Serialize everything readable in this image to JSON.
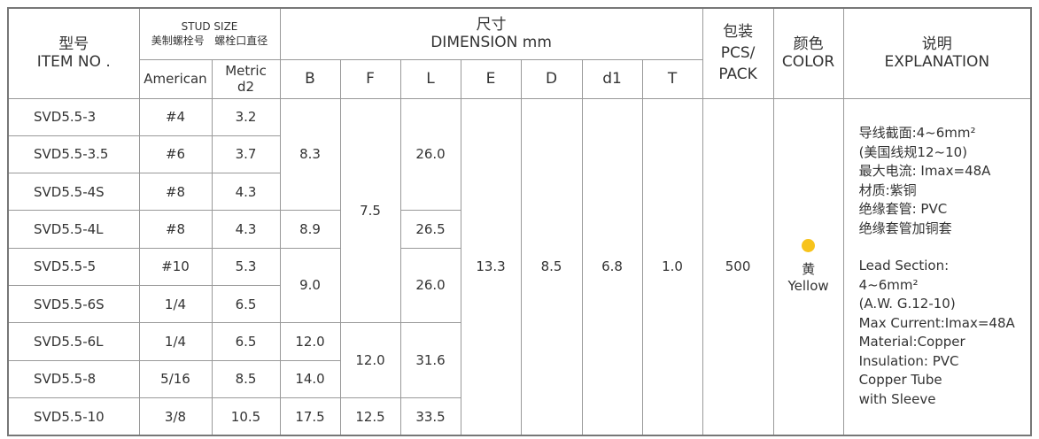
{
  "header": {
    "model_zh": "型号",
    "model_en": "ITEM NO .",
    "stud_size": "STUD SIZE",
    "stud_american_zh": "美制螺栓号",
    "stud_metric_zh": "螺栓口直径",
    "dim_zh": "尺寸",
    "dim_en": "DIMENSION mm",
    "american": "American",
    "metric": "Metric",
    "metric_d2": "d2",
    "B": "B",
    "F": "F",
    "L": "L",
    "E": "E",
    "D": "D",
    "d1": "d1",
    "T": "T",
    "pack_zh": "包装",
    "pack_en1": "PCS/",
    "pack_en2": "PACK",
    "color_zh": "颜色",
    "color_en": "COLOR",
    "expl_zh": "说明",
    "expl_en": "EXPLANATION"
  },
  "rows": [
    {
      "model": "SVD5.5-3",
      "american": "#4",
      "metric": "3.2"
    },
    {
      "model": "SVD5.5-3.5",
      "american": "#6",
      "metric": "3.7"
    },
    {
      "model": "SVD5.5-4S",
      "american": "#8",
      "metric": "4.3"
    },
    {
      "model": "SVD5.5-4L",
      "american": "#8",
      "metric": "4.3"
    },
    {
      "model": "SVD5.5-5",
      "american": "#10",
      "metric": "5.3"
    },
    {
      "model": "SVD5.5-6S",
      "american": "1/4",
      "metric": "6.5"
    },
    {
      "model": "SVD5.5-6L",
      "american": "1/4",
      "metric": "6.5"
    },
    {
      "model": "SVD5.5-8",
      "american": "5/16",
      "metric": "8.5"
    },
    {
      "model": "SVD5.5-10",
      "american": "3/8",
      "metric": "10.5"
    }
  ],
  "B": [
    "8.3",
    "8.9",
    "9.0",
    "12.0",
    "14.0",
    "17.5"
  ],
  "F": [
    "7.5",
    "12.0",
    "12.5"
  ],
  "L": [
    "26.0",
    "26.5",
    "26.0",
    "31.6",
    "33.5"
  ],
  "E": "13.3",
  "D": "8.5",
  "d1": "6.8",
  "T": "1.0",
  "pack": "500",
  "color": {
    "zh": "黄",
    "en": "Yellow"
  },
  "explanation": {
    "zh": [
      "导线截面:4~6mm²",
      "(美国线规12~10)",
      "最大电流: Imax=48A",
      "材质:紫铜",
      "绝缘套管: PVC",
      "绝缘套管加铜套"
    ],
    "en": [
      "Lead Section:",
      "4~6mm²",
      "(A.W. G.12-10)",
      "Max Current:Imax=48A",
      "Material:Copper",
      "Insulation: PVC",
      "Copper Tube",
      "with Sleeve"
    ]
  }
}
